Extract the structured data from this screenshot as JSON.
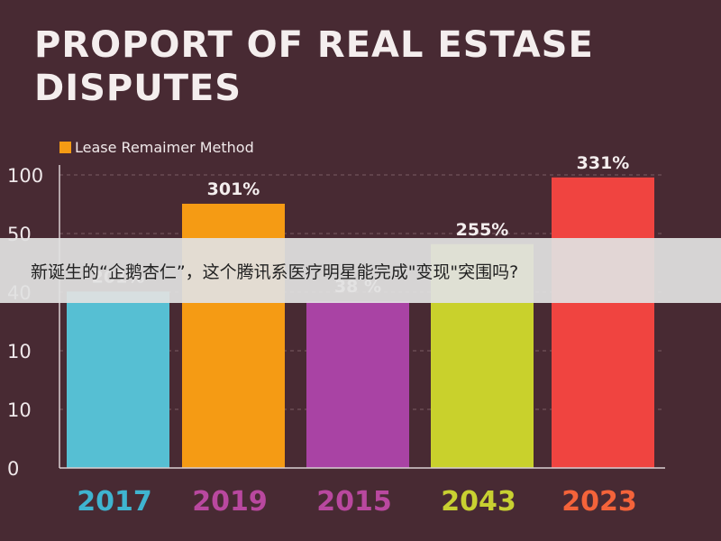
{
  "chart_data": {
    "type": "bar",
    "title": "PROPORT OF REAL ESTASE DISPUTES",
    "legend": {
      "label": "Lease Remaimer Method",
      "color": "#f59b14",
      "placement": "top-left"
    },
    "y_tick_labels": [
      "0",
      "10",
      "10",
      "40",
      "50",
      "100"
    ],
    "categories": [
      "2017",
      "2019",
      "2015",
      "2043",
      "2023"
    ],
    "values": [
      201,
      301,
      38,
      255,
      331
    ],
    "value_labels": [
      "201%",
      "301%",
      "38 %",
      "255%",
      "331%"
    ],
    "colors": [
      "#56bfd3",
      "#f59b14",
      "#a943a4",
      "#c9d12c",
      "#f04440"
    ],
    "category_label_colors": [
      "#3fb4d0",
      "#b9489f",
      "#b9489f",
      "#c8d031",
      "#f4633a"
    ],
    "grid": true
  },
  "overlay": {
    "banner_text": "新诞生的“企鹅杏仁”，这个腾讯系医疗明星能完成\"变现\"突围吗?"
  }
}
